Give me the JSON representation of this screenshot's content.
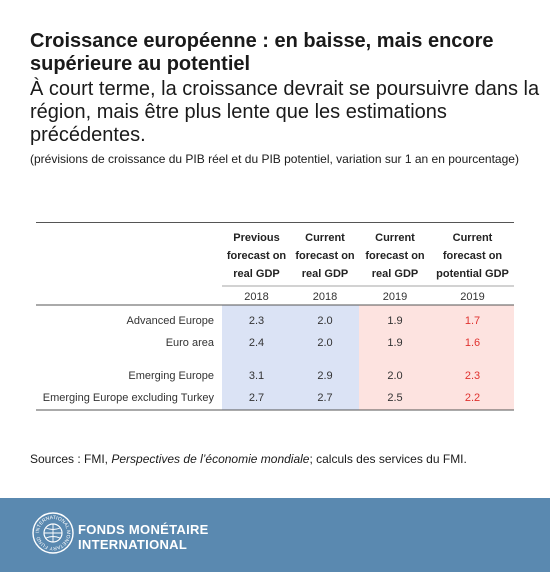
{
  "header": {
    "title": "Croissance européenne : en baisse, mais encore supérieure au potentiel",
    "subtitle": "À court terme, la croissance devrait se poursuivre dans la région, mais être plus lente que les estimations précédentes.",
    "note": "(prévisions de croissance du PIB réel et du PIB potentiel, variation sur 1 an en pourcentage)"
  },
  "chart_data": {
    "type": "table",
    "columns": [
      {
        "header": [
          "Previous",
          "forecast on",
          "real GDP"
        ],
        "year": "2018"
      },
      {
        "header": [
          "Current",
          "forecast on",
          "real GDP"
        ],
        "year": "2018"
      },
      {
        "header": [
          "Current",
          "forecast on",
          "real GDP"
        ],
        "year": "2019"
      },
      {
        "header": [
          "Current",
          "forecast on",
          "potential GDP"
        ],
        "year": "2019"
      }
    ],
    "rows": [
      {
        "label": "Advanced Europe",
        "values": [
          "2.3",
          "2.0",
          "1.9",
          "1.7"
        ]
      },
      {
        "label": "Euro area",
        "values": [
          "2.4",
          "2.0",
          "1.9",
          "1.6"
        ]
      },
      {
        "label": "Emerging Europe",
        "values": [
          "3.1",
          "2.9",
          "2.0",
          "2.3"
        ]
      },
      {
        "label": "Emerging Europe excluding Turkey",
        "values": [
          "2.7",
          "2.7",
          "2.5",
          "2.2"
        ]
      }
    ],
    "column_colors": [
      "#dbe3f5",
      "#dbe3f5",
      "#fde3e0",
      "#fde3e0"
    ],
    "value_colors": [
      "#333333",
      "#333333",
      "#333333",
      "#e0322f"
    ]
  },
  "sources": {
    "prefix": "Sources : FMI, ",
    "publication": "Perspectives de l’économie mondiale",
    "suffix": "; calculs des services du FMI."
  },
  "footer": {
    "brand_line1": "FONDS MONÉTAIRE",
    "brand_line2": "INTERNATIONAL",
    "seal_text": "INTERNATIONAL MONETARY FUND",
    "background": "#5a89b0"
  }
}
